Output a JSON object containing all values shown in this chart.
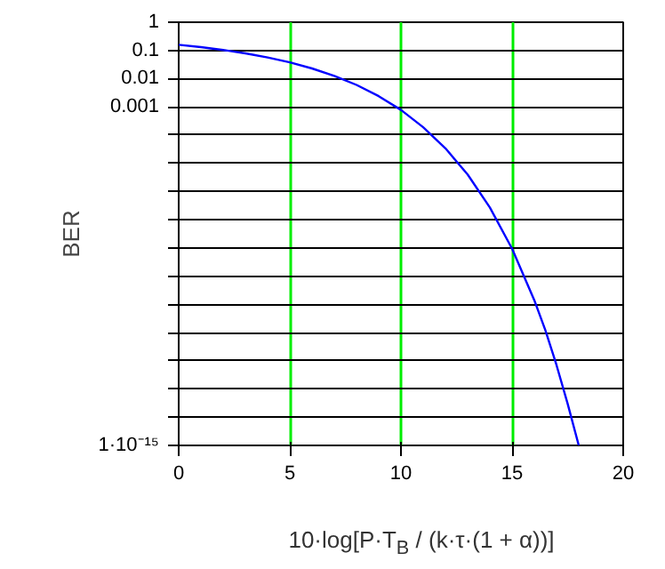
{
  "chart_data": {
    "type": "line",
    "xlabel": "10·log[P·T$_{B}$ / (k·τ·(1 + α))]",
    "ylabel": "BER",
    "log": "y",
    "x": [
      0,
      1,
      2,
      3,
      4,
      5,
      6,
      7,
      8,
      9,
      10,
      11,
      12,
      13,
      14,
      15,
      16,
      16.5,
      17,
      17.5,
      18
    ],
    "series": [
      {
        "color": "#0000ff",
        "values": [
          0.159,
          0.131,
          0.104,
          0.0786,
          0.0563,
          0.0377,
          0.023,
          0.0126,
          0.006,
          0.00239,
          0.00078,
          0.00019,
          3.4e-05,
          4e-06,
          2.7e-07,
          9.4e-09,
          1.4e-10,
          1.2e-11,
          7e-13,
          3e-14,
          1e-15
        ]
      }
    ],
    "xlim": [
      0,
      20
    ],
    "xticks": [
      0,
      5,
      10,
      15,
      20
    ],
    "ylim": [
      1e-15,
      1
    ],
    "yticks": [
      1,
      0.1,
      0.01,
      0.001,
      {
        "value": 0.0001,
        "label": null
      },
      {
        "value": 1e-05,
        "label": null
      },
      {
        "value": 1e-06,
        "label": null
      },
      {
        "value": 1e-07,
        "label": null
      },
      {
        "value": 1e-08,
        "label": null
      },
      {
        "value": 1e-09,
        "label": null
      },
      {
        "value": 1e-10,
        "label": null
      },
      {
        "value": 1e-11,
        "label": null
      },
      {
        "value": 1e-12,
        "label": null
      },
      {
        "value": 1e-13,
        "label": null
      },
      {
        "value": 1e-14,
        "label": null
      },
      {
        "value": 1e-15,
        "label": "1·10⁻¹⁵"
      }
    ],
    "grid": true,
    "marker": "none",
    "line_style": "solid"
  }
}
